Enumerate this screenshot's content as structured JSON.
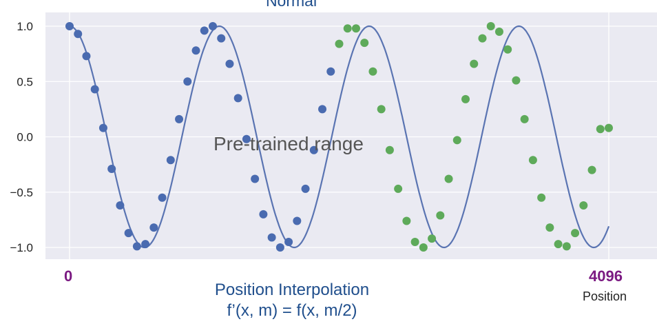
{
  "chart_data": {
    "type": "line",
    "title": "Normal",
    "xlabel": "Position",
    "ylabel": "",
    "xlim": [
      0,
      4096
    ],
    "ylim": [
      -1.1,
      1.1
    ],
    "yticks": [
      "1.0",
      "0.5",
      "0.0",
      "−0.5",
      "−1.0"
    ],
    "ytick_values": [
      1.0,
      0.5,
      0.0,
      -0.5,
      -1.0
    ],
    "xtick_labels": {
      "start": "0",
      "end": "4096"
    },
    "grid": true,
    "annotation": "Pre-trained range",
    "caption": [
      "Position Interpolation",
      "f’(x, m) = f(x, m/2)"
    ],
    "series": [
      {
        "style": "curve",
        "function": "cos",
        "cycles": 3.6,
        "color": "#5a74b2"
      },
      {
        "style": "points",
        "x": [
          0,
          64,
          128,
          192,
          256,
          320,
          384,
          448,
          512,
          576,
          640,
          704,
          768,
          832,
          896,
          960,
          1024,
          1088,
          1152,
          1216,
          1280,
          1344,
          1408,
          1472,
          1536,
          1600,
          1664,
          1728,
          1792,
          1856,
          1920,
          1984
        ],
        "y": [
          1.0,
          0.93,
          0.73,
          0.43,
          0.08,
          -0.29,
          -0.62,
          -0.87,
          -0.99,
          -0.97,
          -0.82,
          -0.55,
          -0.21,
          0.16,
          0.5,
          0.78,
          0.96,
          1.0,
          0.89,
          0.66,
          0.35,
          -0.02,
          -0.38,
          -0.7,
          -0.91,
          -1.0,
          -0.95,
          -0.76,
          -0.47,
          -0.12,
          0.25,
          0.59
        ],
        "color": "#4a6bb0"
      },
      {
        "style": "points",
        "x": [
          2048,
          2112,
          2176,
          2240,
          2304,
          2368,
          2432,
          2496,
          2560,
          2624,
          2688,
          2752,
          2816,
          2880,
          2944,
          3008,
          3072,
          3136,
          3200,
          3264,
          3328,
          3392,
          3456,
          3520,
          3584,
          3648,
          3712,
          3776,
          3840,
          3904,
          3968,
          4032,
          4096
        ],
        "y": [
          0.84,
          0.98,
          0.98,
          0.85,
          0.59,
          0.25,
          -0.12,
          -0.47,
          -0.76,
          -0.95,
          -1.0,
          -0.92,
          -0.71,
          -0.38,
          -0.03,
          0.34,
          0.66,
          0.89,
          1.0,
          0.95,
          0.79,
          0.51,
          0.16,
          -0.21,
          -0.55,
          -0.82,
          -0.97,
          -0.99,
          -0.87,
          -0.62,
          -0.3,
          0.07,
          0.08
        ],
        "color": "#5eaa5a"
      }
    ]
  }
}
